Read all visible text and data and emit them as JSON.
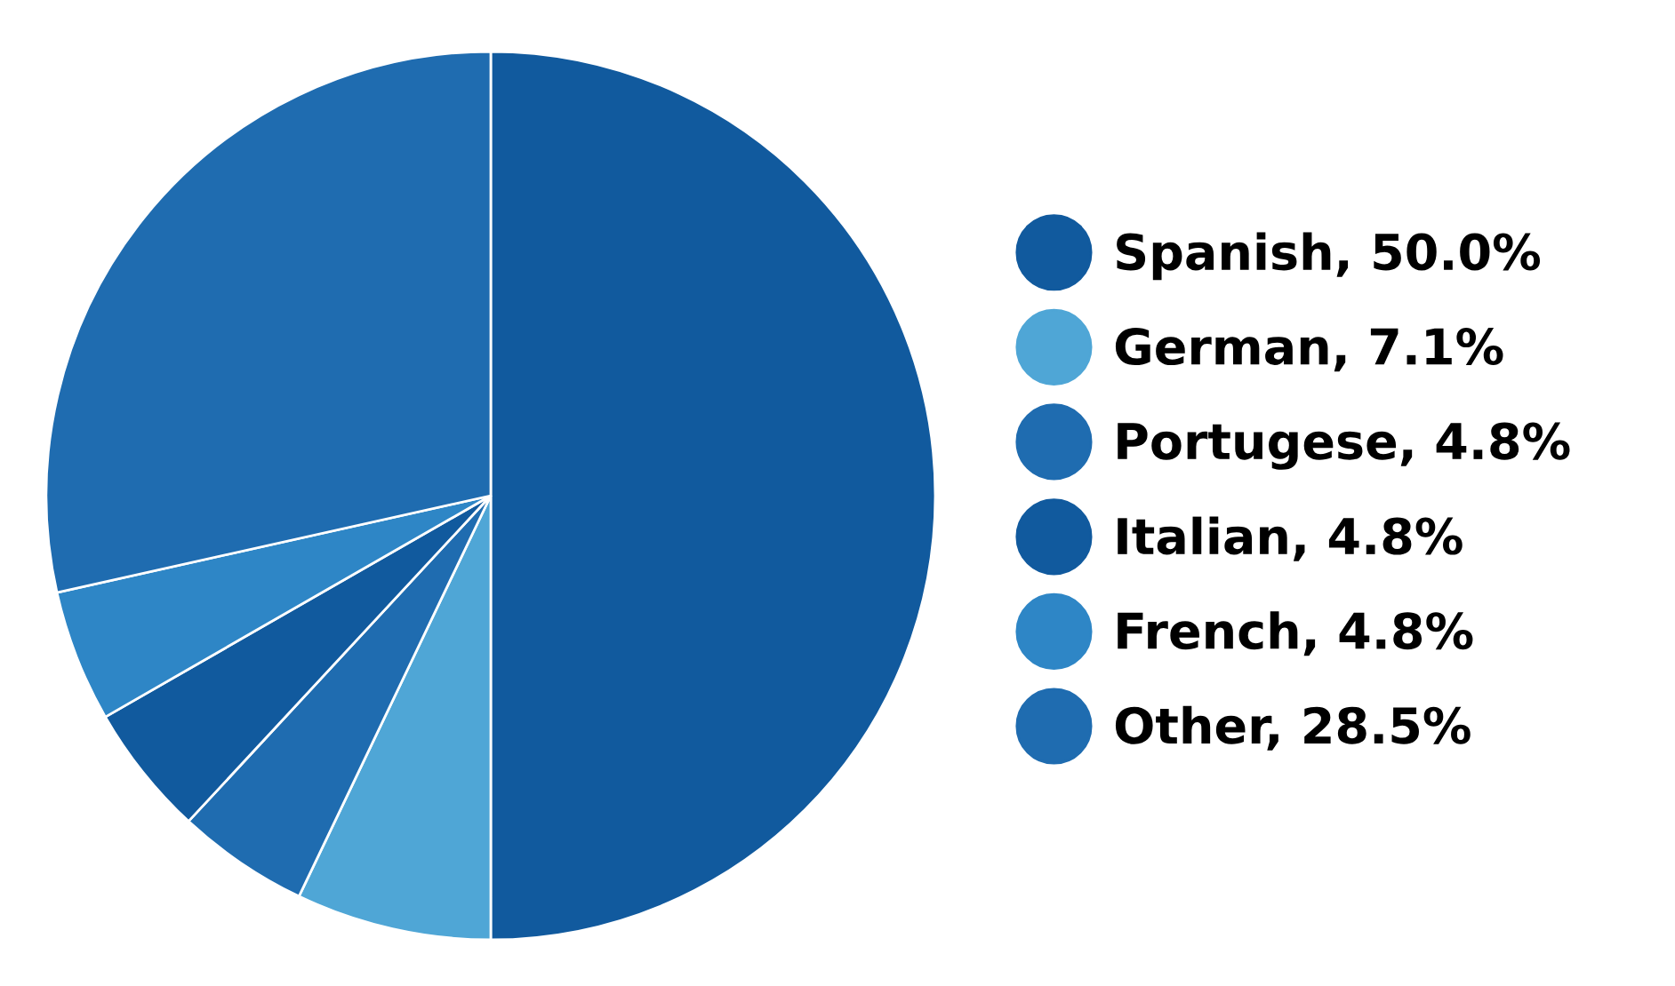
{
  "chart_data": {
    "type": "pie",
    "categories": [
      "Spanish",
      "German",
      "Portugese",
      "Italian",
      "French",
      "Other"
    ],
    "values": [
      50.0,
      7.1,
      4.8,
      4.8,
      4.8,
      28.5
    ],
    "value_labels": [
      "50.0%",
      "7.1%",
      "4.8%",
      "4.8%",
      "4.8%",
      "28.5%"
    ],
    "colors": [
      "#115a9e",
      "#4fa6d6",
      "#1f6cb0",
      "#115a9e",
      "#2e86c6",
      "#1f6cb0"
    ],
    "legend": "right"
  }
}
